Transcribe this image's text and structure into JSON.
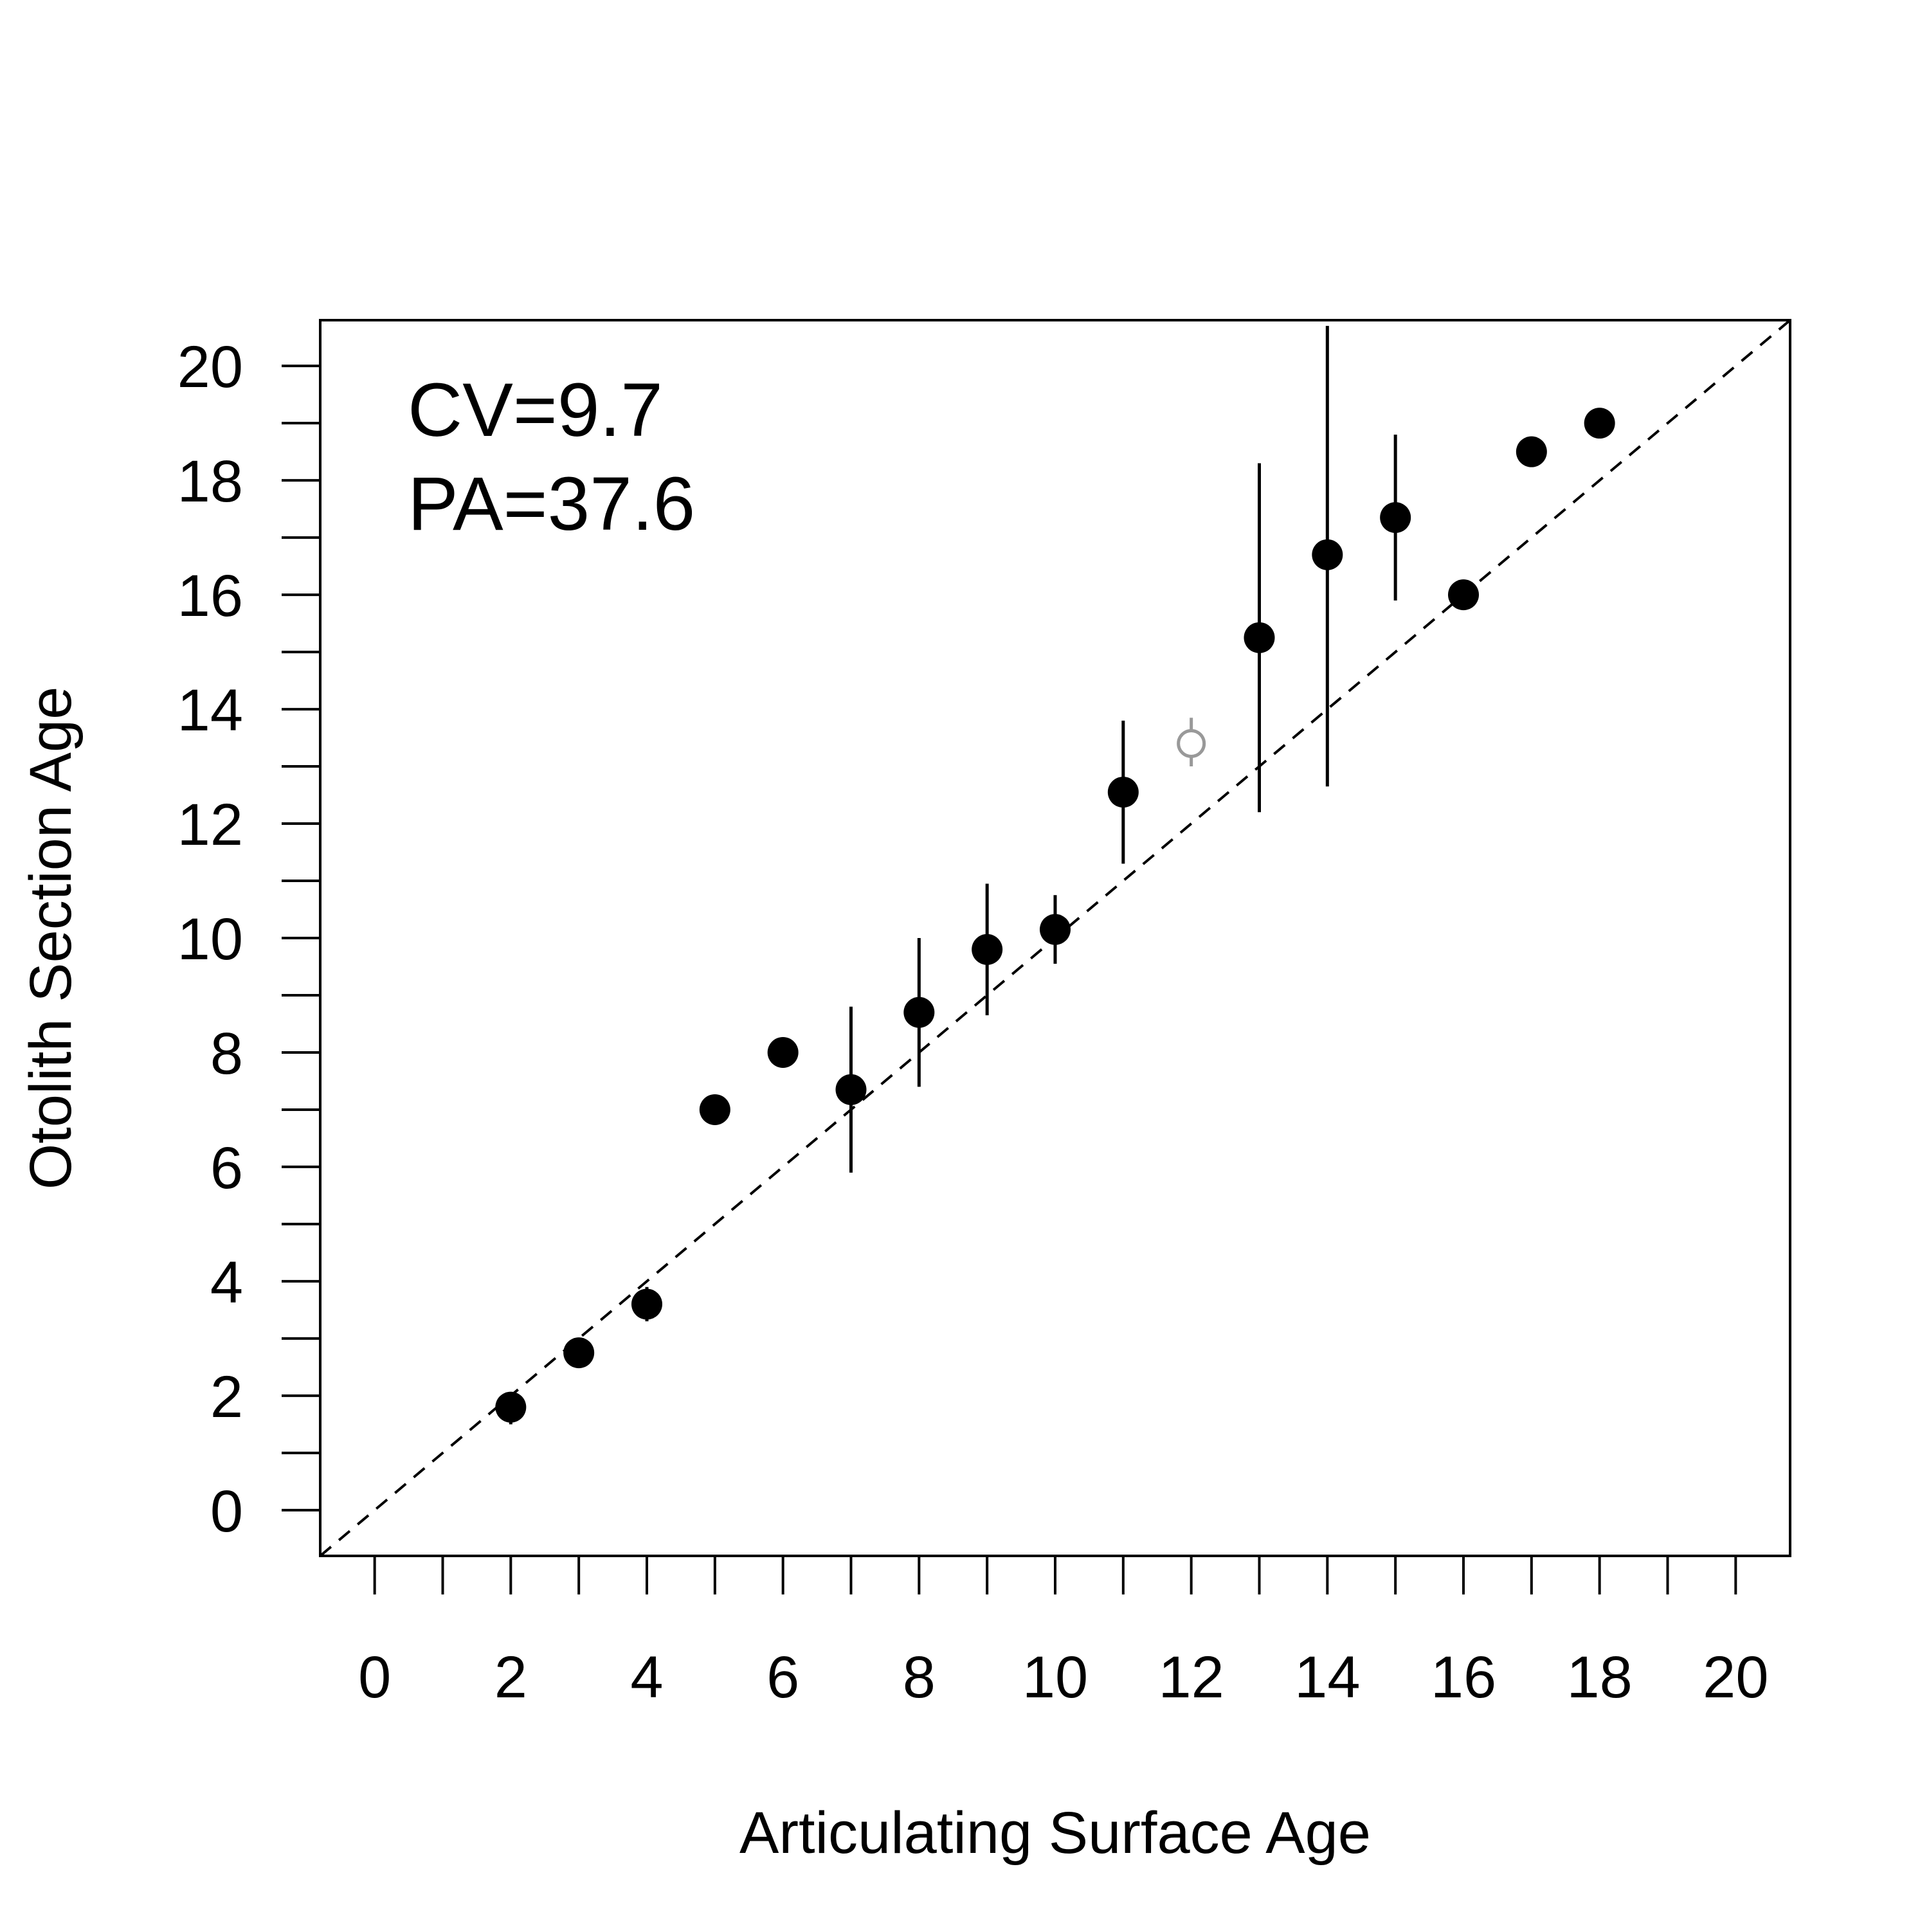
{
  "chart_data": {
    "type": "scatter",
    "title": "",
    "xlabel": "Articulating Surface Age",
    "ylabel": "Otolith Section Age",
    "xlim": [
      -0.8,
      20.8
    ],
    "ylim": [
      -0.8,
      20.8
    ],
    "x_ticks_labeled": [
      0,
      2,
      4,
      6,
      8,
      10,
      12,
      14,
      16,
      18,
      20
    ],
    "x_ticks_minor": [
      1,
      3,
      5,
      7,
      9,
      11,
      13,
      15,
      17,
      19
    ],
    "y_ticks_labeled": [
      0,
      2,
      4,
      6,
      8,
      10,
      12,
      14,
      16,
      18,
      20
    ],
    "y_ticks_minor": [
      1,
      3,
      5,
      7,
      9,
      11,
      13,
      15,
      17,
      19
    ],
    "grid": false,
    "reference_line": {
      "type": "1:1",
      "style": "dashed",
      "from": [
        -0.8,
        -0.8
      ],
      "to": [
        20.8,
        20.8
      ]
    },
    "annotations": [
      "CV=9.7",
      "PA=37.6"
    ],
    "points": [
      {
        "x": 2,
        "y": 1.8,
        "low": 1.5,
        "high": 2.0,
        "style": "filled"
      },
      {
        "x": 3,
        "y": 2.75,
        "low": 2.5,
        "high": 3.0,
        "style": "filled"
      },
      {
        "x": 4,
        "y": 3.6,
        "low": 3.3,
        "high": 3.9,
        "style": "filled"
      },
      {
        "x": 5,
        "y": 7.0,
        "low": 7.0,
        "high": 7.0,
        "style": "filled"
      },
      {
        "x": 6,
        "y": 8.0,
        "low": 8.0,
        "high": 8.0,
        "style": "filled"
      },
      {
        "x": 7,
        "y": 7.35,
        "low": 5.9,
        "high": 8.8,
        "style": "filled"
      },
      {
        "x": 8,
        "y": 8.7,
        "low": 7.4,
        "high": 10.0,
        "style": "filled"
      },
      {
        "x": 9,
        "y": 9.8,
        "low": 8.65,
        "high": 10.95,
        "style": "filled"
      },
      {
        "x": 10,
        "y": 10.15,
        "low": 9.55,
        "high": 10.75,
        "style": "filled"
      },
      {
        "x": 11,
        "y": 12.55,
        "low": 11.3,
        "high": 13.8,
        "style": "filled"
      },
      {
        "x": 12,
        "y": 13.4,
        "low": 13.0,
        "high": 13.85,
        "style": "open"
      },
      {
        "x": 13,
        "y": 15.25,
        "low": 12.2,
        "high": 18.3,
        "style": "filled"
      },
      {
        "x": 14,
        "y": 16.7,
        "low": 12.65,
        "high": 20.7,
        "style": "filled"
      },
      {
        "x": 15,
        "y": 17.35,
        "low": 15.9,
        "high": 18.8,
        "style": "filled"
      },
      {
        "x": 16,
        "y": 16.0,
        "low": 16.0,
        "high": 16.0,
        "style": "filled"
      },
      {
        "x": 17,
        "y": 18.5,
        "low": 18.5,
        "high": 18.5,
        "style": "filled"
      },
      {
        "x": 18,
        "y": 19.0,
        "low": 19.0,
        "high": 19.0,
        "style": "filled"
      }
    ],
    "colors": {
      "filled": "#000000",
      "open": "#999999",
      "line": "#000000"
    }
  }
}
